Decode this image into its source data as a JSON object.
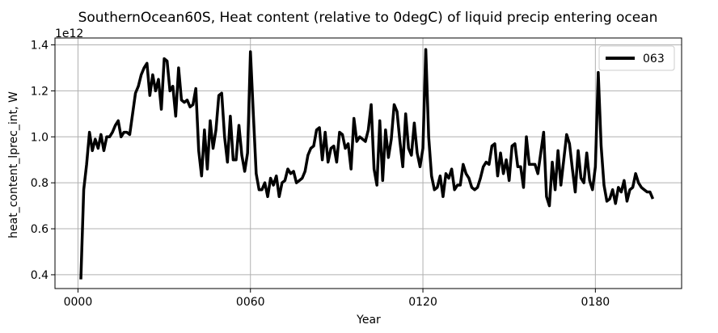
{
  "chart_data": {
    "type": "line",
    "title": "SouthernOcean60S, Heat content (relative to 0degC) of liquid precip entering ocean",
    "xlabel": "Year",
    "ylabel": "heat_content_lprec_int, W",
    "y_offset_label": "1e12",
    "xlim": [
      -8,
      210
    ],
    "ylim": [
      0.34,
      1.43
    ],
    "x_ticks": [
      0,
      60,
      120,
      180
    ],
    "x_tick_labels": [
      "0000",
      "0060",
      "0120",
      "0180"
    ],
    "y_ticks": [
      0.4,
      0.6,
      0.8,
      1.0,
      1.2,
      1.4
    ],
    "y_tick_labels": [
      "0.4",
      "0.6",
      "0.8",
      "1.0",
      "1.2",
      "1.4"
    ],
    "grid": true,
    "legend_position": "top-right",
    "colors": {
      "line": "#000000",
      "grid": "#b0b0b0",
      "axis": "#000000"
    },
    "series": [
      {
        "name": "063",
        "x": [
          1,
          2,
          3,
          4,
          5,
          6,
          7,
          8,
          9,
          10,
          11,
          12,
          13,
          14,
          15,
          16,
          17,
          18,
          19,
          20,
          21,
          22,
          23,
          24,
          25,
          26,
          27,
          28,
          29,
          30,
          31,
          32,
          33,
          34,
          35,
          36,
          37,
          38,
          39,
          40,
          41,
          42,
          43,
          44,
          45,
          46,
          47,
          48,
          49,
          50,
          51,
          52,
          53,
          54,
          55,
          56,
          57,
          58,
          59,
          60,
          61,
          62,
          63,
          64,
          65,
          66,
          67,
          68,
          69,
          70,
          71,
          72,
          73,
          74,
          75,
          76,
          77,
          78,
          79,
          80,
          81,
          82,
          83,
          84,
          85,
          86,
          87,
          88,
          89,
          90,
          91,
          92,
          93,
          94,
          95,
          96,
          97,
          98,
          99,
          100,
          101,
          102,
          103,
          104,
          105,
          106,
          107,
          108,
          109,
          110,
          111,
          112,
          113,
          114,
          115,
          116,
          117,
          118,
          119,
          120,
          121,
          122,
          123,
          124,
          125,
          126,
          127,
          128,
          129,
          130,
          131,
          132,
          133,
          134,
          135,
          136,
          137,
          138,
          139,
          140,
          141,
          142,
          143,
          144,
          145,
          146,
          147,
          148,
          149,
          150,
          151,
          152,
          153,
          154,
          155,
          156,
          157,
          158,
          159,
          160,
          161,
          162,
          163,
          164,
          165,
          166,
          167,
          168,
          169,
          170,
          171,
          172,
          173,
          174,
          175,
          176,
          177,
          178,
          179,
          180,
          181,
          182,
          183,
          184,
          185,
          186,
          187,
          188,
          189,
          190,
          191,
          192,
          193,
          194,
          195,
          196,
          197,
          198,
          199,
          200
        ],
        "values": [
          0.38,
          0.77,
          0.88,
          1.02,
          0.94,
          0.99,
          0.95,
          1.01,
          0.94,
          1.0,
          1.0,
          1.02,
          1.05,
          1.07,
          1.0,
          1.02,
          1.02,
          1.01,
          1.1,
          1.19,
          1.22,
          1.27,
          1.3,
          1.32,
          1.18,
          1.27,
          1.2,
          1.25,
          1.12,
          1.34,
          1.33,
          1.2,
          1.22,
          1.09,
          1.3,
          1.16,
          1.15,
          1.16,
          1.13,
          1.14,
          1.21,
          0.94,
          0.83,
          1.03,
          0.86,
          1.07,
          0.95,
          1.03,
          1.18,
          1.19,
          1.0,
          0.89,
          1.09,
          0.9,
          0.9,
          1.05,
          0.92,
          0.85,
          0.93,
          1.37,
          1.1,
          0.84,
          0.77,
          0.77,
          0.8,
          0.74,
          0.82,
          0.79,
          0.83,
          0.74,
          0.8,
          0.81,
          0.86,
          0.84,
          0.85,
          0.8,
          0.81,
          0.82,
          0.85,
          0.92,
          0.95,
          0.96,
          1.03,
          1.04,
          0.9,
          1.02,
          0.89,
          0.95,
          0.96,
          0.89,
          1.02,
          1.01,
          0.95,
          0.97,
          0.86,
          1.08,
          0.98,
          1.0,
          0.99,
          0.98,
          1.03,
          1.14,
          0.86,
          0.79,
          1.07,
          0.81,
          1.03,
          0.91,
          0.99,
          1.14,
          1.11,
          0.98,
          0.87,
          1.1,
          0.95,
          0.92,
          1.06,
          0.93,
          0.87,
          0.95,
          1.38,
          1.0,
          0.83,
          0.77,
          0.78,
          0.83,
          0.74,
          0.84,
          0.82,
          0.86,
          0.77,
          0.79,
          0.79,
          0.88,
          0.84,
          0.82,
          0.78,
          0.77,
          0.78,
          0.82,
          0.87,
          0.89,
          0.88,
          0.96,
          0.97,
          0.83,
          0.93,
          0.84,
          0.9,
          0.81,
          0.96,
          0.97,
          0.87,
          0.87,
          0.78,
          1.0,
          0.88,
          0.88,
          0.88,
          0.84,
          0.93,
          1.02,
          0.74,
          0.7,
          0.89,
          0.77,
          0.94,
          0.79,
          0.9,
          1.01,
          0.97,
          0.86,
          0.76,
          0.94,
          0.82,
          0.8,
          0.93,
          0.81,
          0.77,
          0.87,
          1.28,
          0.96,
          0.79,
          0.72,
          0.73,
          0.77,
          0.71,
          0.78,
          0.76,
          0.81,
          0.72,
          0.77,
          0.78,
          0.84,
          0.8,
          0.78,
          0.77,
          0.76,
          0.76,
          0.73
        ]
      }
    ]
  }
}
